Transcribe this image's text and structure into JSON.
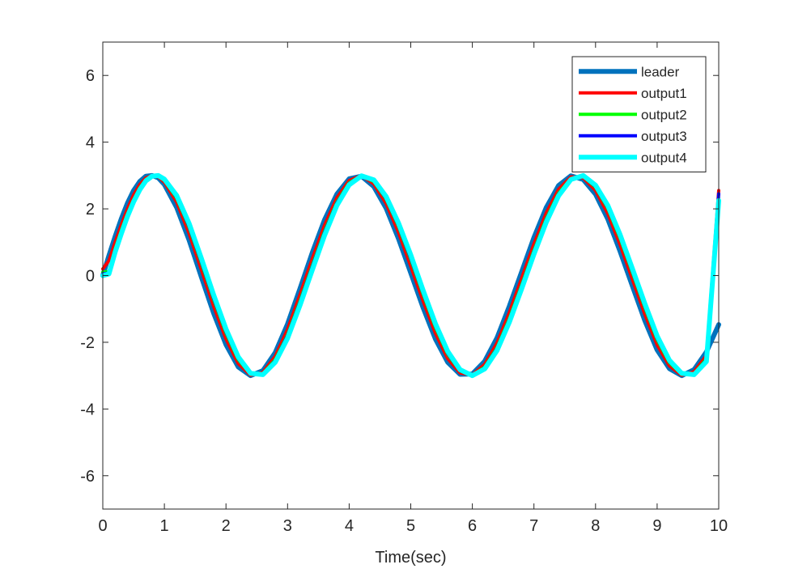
{
  "chart_data": {
    "type": "line",
    "title": "",
    "xlabel": "Time(sec)",
    "ylabel": "",
    "xlim": [
      0,
      10
    ],
    "ylim": [
      -7,
      7
    ],
    "xticks": [
      0,
      1,
      2,
      3,
      4,
      5,
      6,
      7,
      8,
      9,
      10
    ],
    "yticks": [
      -6,
      -4,
      -2,
      0,
      2,
      4,
      6
    ],
    "xtick_labels": [
      "0",
      "1",
      "2",
      "3",
      "4",
      "5",
      "6",
      "7",
      "8",
      "9",
      "10"
    ],
    "ytick_labels": [
      "-6",
      "-4",
      "-2",
      "0",
      "2",
      "4",
      "6"
    ],
    "grid": false,
    "legend_position": "top-right",
    "x": [
      0,
      0.1,
      0.2,
      0.3,
      0.4,
      0.5,
      0.6,
      0.7,
      0.8,
      0.9,
      1.0,
      1.2,
      1.4,
      1.6,
      1.8,
      2.0,
      2.2,
      2.4,
      2.6,
      2.8,
      3.0,
      3.2,
      3.4,
      3.6,
      3.8,
      4.0,
      4.2,
      4.4,
      4.6,
      4.8,
      5.0,
      5.2,
      5.4,
      5.6,
      5.8,
      6.0,
      6.2,
      6.4,
      6.6,
      6.8,
      7.0,
      7.2,
      7.4,
      7.6,
      7.8,
      8.0,
      8.2,
      8.4,
      8.6,
      8.8,
      9.0,
      9.2,
      9.4,
      9.6,
      9.8,
      10.0
    ],
    "series": [
      {
        "name": "leader",
        "color": "#0072BD",
        "width": 6,
        "values": [
          0.0,
          0.6,
          1.17,
          1.7,
          2.17,
          2.55,
          2.82,
          2.98,
          3.0,
          2.93,
          2.73,
          2.04,
          1.07,
          -0.04,
          -1.13,
          -2.07,
          -2.74,
          -3.0,
          -2.85,
          -2.31,
          -1.45,
          -0.4,
          0.68,
          1.67,
          2.44,
          2.9,
          2.98,
          2.67,
          2.02,
          1.11,
          0.08,
          -0.96,
          -1.9,
          -2.6,
          -2.96,
          -2.95,
          -2.57,
          -1.87,
          -0.92,
          0.11,
          1.14,
          2.04,
          2.7,
          2.99,
          2.88,
          2.44,
          1.69,
          0.72,
          -0.32,
          -1.35,
          -2.23,
          -2.79,
          -3.0,
          -2.82,
          -2.29,
          -1.47
        ]
      },
      {
        "name": "output1",
        "color": "#FF0000",
        "width": 4,
        "values": [
          0.2,
          0.45,
          1.0,
          1.52,
          2.0,
          2.42,
          2.73,
          2.93,
          3.0,
          2.96,
          2.8,
          2.2,
          1.27,
          0.18,
          -0.92,
          -1.9,
          -2.64,
          -2.99,
          -2.9,
          -2.42,
          -1.61,
          -0.58,
          0.5,
          1.51,
          2.33,
          2.85,
          3.0,
          2.75,
          2.16,
          1.3,
          0.28,
          -0.76,
          -1.73,
          -2.49,
          -2.92,
          -2.98,
          -2.66,
          -2.02,
          -1.11,
          -0.08,
          0.95,
          1.88,
          2.59,
          2.96,
          2.93,
          2.55,
          1.85,
          0.92,
          -0.12,
          -1.16,
          -2.08,
          -2.71,
          -2.99,
          -2.88,
          -2.4,
          2.55
        ]
      },
      {
        "name": "output2",
        "color": "#00FF00",
        "width": 4,
        "values": [
          0.1,
          0.12,
          0.8,
          1.35,
          1.85,
          2.28,
          2.63,
          2.88,
          3.0,
          2.98,
          2.85,
          2.32,
          1.45,
          0.38,
          -0.72,
          -1.72,
          -2.52,
          -2.96,
          -2.94,
          -2.52,
          -1.77,
          -0.77,
          0.3,
          1.33,
          2.2,
          2.78,
          3.0,
          2.82,
          2.29,
          1.48,
          0.48,
          -0.56,
          -1.55,
          -2.36,
          -2.86,
          -3.0,
          -2.74,
          -2.16,
          -1.29,
          -0.28,
          0.76,
          1.71,
          2.47,
          2.91,
          2.97,
          2.65,
          2.01,
          1.11,
          0.08,
          -0.96,
          -1.92,
          -2.61,
          -2.96,
          -2.94,
          -2.5,
          2.3
        ]
      },
      {
        "name": "output3",
        "color": "#0000FF",
        "width": 4,
        "values": [
          0.05,
          0.08,
          0.75,
          1.3,
          1.82,
          2.26,
          2.61,
          2.87,
          3.0,
          2.99,
          2.86,
          2.35,
          1.48,
          0.42,
          -0.68,
          -1.68,
          -2.49,
          -2.95,
          -2.95,
          -2.55,
          -1.8,
          -0.81,
          0.26,
          1.29,
          2.17,
          2.76,
          3.0,
          2.84,
          2.31,
          1.51,
          0.52,
          -0.52,
          -1.51,
          -2.33,
          -2.85,
          -3.0,
          -2.76,
          -2.19,
          -1.33,
          -0.32,
          0.72,
          1.67,
          2.44,
          2.9,
          2.98,
          2.67,
          2.04,
          1.15,
          0.12,
          -0.92,
          -1.88,
          -2.58,
          -2.95,
          -2.95,
          -2.53,
          2.45
        ]
      },
      {
        "name": "output4",
        "color": "#00FFFF",
        "width": 6,
        "values": [
          0.0,
          0.05,
          0.7,
          1.25,
          1.77,
          2.21,
          2.57,
          2.84,
          2.98,
          3.0,
          2.89,
          2.4,
          1.57,
          0.52,
          -0.58,
          -1.6,
          -2.44,
          -2.93,
          -2.97,
          -2.6,
          -1.88,
          -0.9,
          0.16,
          1.2,
          2.1,
          2.72,
          2.99,
          2.87,
          2.37,
          1.58,
          0.62,
          -0.44,
          -1.44,
          -2.27,
          -2.82,
          -3.0,
          -2.8,
          -2.25,
          -1.4,
          -0.4,
          0.64,
          1.6,
          2.39,
          2.88,
          3.0,
          2.71,
          2.1,
          1.22,
          0.2,
          -0.84,
          -1.81,
          -2.54,
          -2.93,
          -2.97,
          -2.58,
          2.25
        ]
      }
    ]
  }
}
